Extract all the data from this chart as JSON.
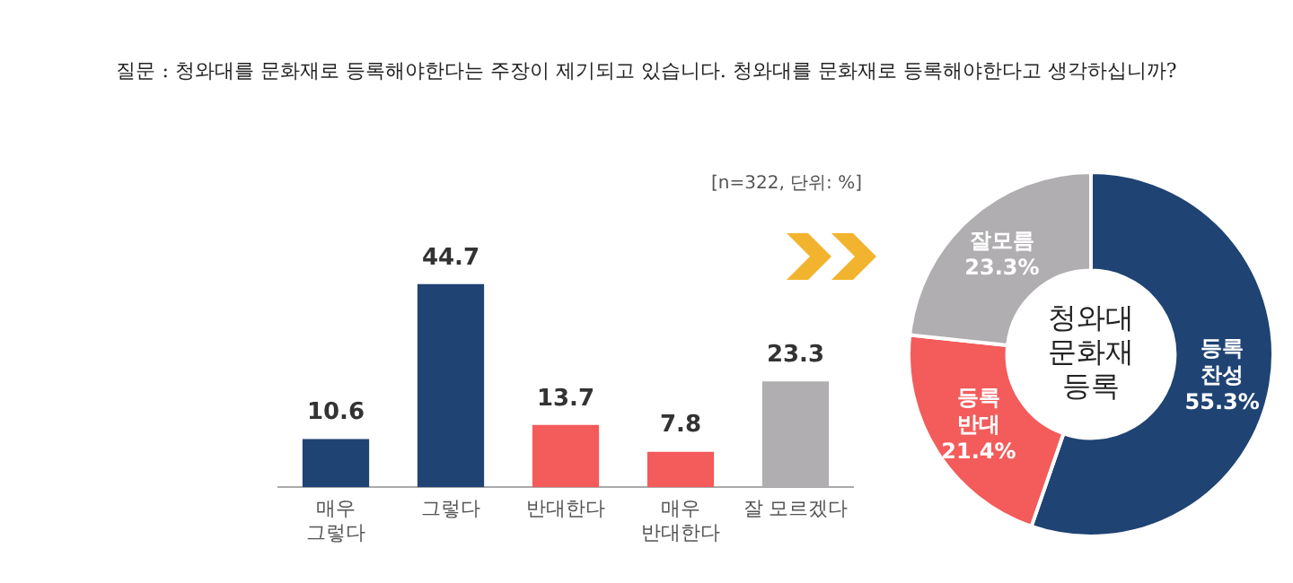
{
  "chart_data": [
    {
      "type": "bar",
      "title": "질문 : 청와대를 문화재로 등록해야한다는 주장이 제기되고 있습니다. 청와대를 문화재로 등록해야한다고 생각하십니까?",
      "annotations": [
        "[n=322,  단위: %]"
      ],
      "categories": [
        "매우\n그렇다",
        "그렇다",
        "반대한다",
        "매우\n반대한다",
        "잘 모르겠다"
      ],
      "values": [
        10.6,
        44.7,
        13.7,
        7.8,
        23.3
      ],
      "colors": [
        "#1f4373",
        "#1f4373",
        "#f45b5b",
        "#f45b5b",
        "#b0aeb0"
      ],
      "data_labels": true,
      "grid": false,
      "legend": false,
      "tick_labels": "x"
    },
    {
      "type": "donut",
      "annotations": [
        "청와대\n문화재\n등록"
      ],
      "categories": [
        "등록\n찬성",
        "등록\n반대",
        "잘모름"
      ],
      "values": [
        55.3,
        21.4,
        23.3
      ],
      "colors": [
        "#1f4373",
        "#f45b5b",
        "#b0aeb0"
      ],
      "value_labels": [
        "55.3%",
        "21.4%",
        "23.3%"
      ],
      "legend": false
    }
  ]
}
